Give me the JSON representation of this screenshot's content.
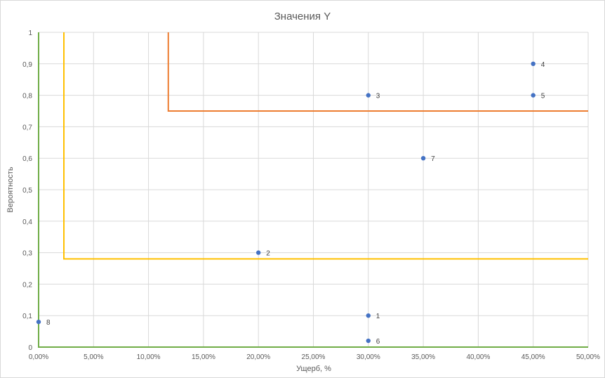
{
  "chart_data": {
    "type": "scatter",
    "title": "Значения Y",
    "xlabel": "Ущерб, %",
    "ylabel": "Вероятность",
    "xlim": [
      0,
      0.5
    ],
    "ylim": [
      0,
      1
    ],
    "x_ticks": [
      0,
      0.05,
      0.1,
      0.15,
      0.2,
      0.25,
      0.3,
      0.35,
      0.4,
      0.45,
      0.5
    ],
    "x_tick_labels": [
      "0,00%",
      "5,00%",
      "10,00%",
      "15,00%",
      "20,00%",
      "25,00%",
      "30,00%",
      "35,00%",
      "40,00%",
      "45,00%",
      "50,00%"
    ],
    "y_ticks": [
      0,
      0.1,
      0.2,
      0.3,
      0.4,
      0.5,
      0.6,
      0.7,
      0.8,
      0.9,
      1
    ],
    "y_tick_labels": [
      "0",
      "0,1",
      "0,2",
      "0,3",
      "0,4",
      "0,5",
      "0,6",
      "0,7",
      "0,8",
      "0,9",
      "1"
    ],
    "grid": true,
    "legend": "none",
    "points": [
      {
        "label": "1",
        "x": 0.3,
        "y": 0.1
      },
      {
        "label": "2",
        "x": 0.2,
        "y": 0.3
      },
      {
        "label": "3",
        "x": 0.3,
        "y": 0.8
      },
      {
        "label": "4",
        "x": 0.45,
        "y": 0.9
      },
      {
        "label": "5",
        "x": 0.45,
        "y": 0.8
      },
      {
        "label": "6",
        "x": 0.3,
        "y": 0.02
      },
      {
        "label": "7",
        "x": 0.35,
        "y": 0.6
      },
      {
        "label": "8",
        "x": 0.0,
        "y": 0.08
      }
    ],
    "point_color": "#4472c4",
    "boundary_lines": [
      {
        "color": "#70ad47",
        "points": [
          [
            0,
            1
          ],
          [
            0,
            0
          ],
          [
            0.5,
            0
          ]
        ]
      },
      {
        "color": "#ffc000",
        "points": [
          [
            0.023,
            1
          ],
          [
            0.023,
            0.28
          ],
          [
            0.5,
            0.28
          ]
        ]
      },
      {
        "color": "#ed7d31",
        "points": [
          [
            0.118,
            1
          ],
          [
            0.118,
            0.75
          ],
          [
            0.5,
            0.75
          ]
        ]
      }
    ]
  }
}
